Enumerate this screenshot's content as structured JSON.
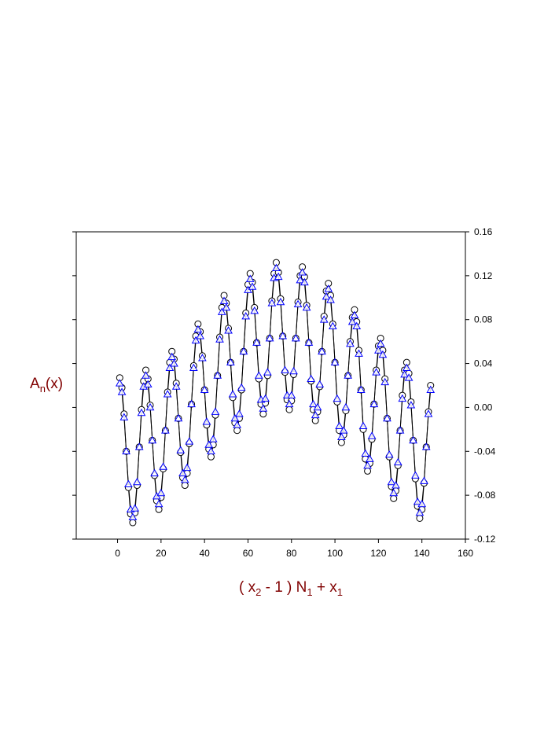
{
  "chart_data": {
    "type": "line",
    "xlabel": [
      "( x",
      "2",
      " - 1 ) N",
      "1",
      " + x",
      "1"
    ],
    "ylabel": [
      "A",
      "n",
      "(x)"
    ],
    "xlim": [
      -19,
      160
    ],
    "xticks": [
      0,
      20,
      40,
      60,
      80,
      100,
      120,
      140,
      160
    ],
    "ylim": [
      -0.12,
      0.16
    ],
    "yticks": [
      -0.12,
      -0.08,
      -0.04,
      {
        "value": 0,
        "label": "0.00"
      },
      0.04,
      0.08,
      0.12,
      0.16
    ],
    "y_axis_side": "right",
    "line_color": "#000000",
    "label_color": "#800000",
    "x": [
      1,
      2,
      3,
      4,
      5,
      6,
      7,
      8,
      9,
      10,
      11,
      12,
      13,
      14,
      15,
      16,
      17,
      18,
      19,
      20,
      21,
      22,
      23,
      24,
      25,
      26,
      27,
      28,
      29,
      30,
      31,
      32,
      33,
      34,
      35,
      36,
      37,
      38,
      39,
      40,
      41,
      42,
      43,
      44,
      45,
      46,
      47,
      48,
      49,
      50,
      51,
      52,
      53,
      54,
      55,
      56,
      57,
      58,
      59,
      60,
      61,
      62,
      63,
      64,
      65,
      66,
      67,
      68,
      69,
      70,
      71,
      72,
      73,
      74,
      75,
      76,
      77,
      78,
      79,
      80,
      81,
      82,
      83,
      84,
      85,
      86,
      87,
      88,
      89,
      90,
      91,
      92,
      93,
      94,
      95,
      96,
      97,
      98,
      99,
      100,
      101,
      102,
      103,
      104,
      105,
      106,
      107,
      108,
      109,
      110,
      111,
      112,
      113,
      114,
      115,
      116,
      117,
      118,
      119,
      120,
      121,
      122,
      123,
      124,
      125,
      126,
      127,
      128,
      129,
      130,
      131,
      132,
      133,
      134,
      135,
      136,
      137,
      138,
      139,
      140,
      141,
      142,
      143,
      144
    ],
    "series": [
      {
        "marker": "circle",
        "color": "#000000",
        "values": [
          0.027,
          0.018,
          -0.006,
          -0.04,
          -0.073,
          -0.097,
          -0.105,
          -0.096,
          -0.071,
          -0.036,
          -0.002,
          0.024,
          0.034,
          0.026,
          0.002,
          -0.03,
          -0.062,
          -0.085,
          -0.093,
          -0.082,
          -0.056,
          -0.021,
          0.014,
          0.041,
          0.051,
          0.044,
          0.022,
          -0.01,
          -0.041,
          -0.064,
          -0.071,
          -0.06,
          -0.033,
          0.003,
          0.038,
          0.065,
          0.076,
          0.069,
          0.047,
          0.016,
          -0.016,
          -0.038,
          -0.045,
          -0.034,
          -0.007,
          0.029,
          0.064,
          0.091,
          0.102,
          0.095,
          0.072,
          0.041,
          0.009,
          -0.014,
          -0.021,
          -0.01,
          0.016,
          0.051,
          0.086,
          0.112,
          0.122,
          0.114,
          0.091,
          0.059,
          0.026,
          0.003,
          -0.006,
          0.004,
          0.029,
          0.063,
          0.097,
          0.122,
          0.132,
          0.123,
          0.099,
          0.065,
          0.032,
          0.007,
          -0.002,
          0.006,
          0.03,
          0.063,
          0.096,
          0.12,
          0.128,
          0.119,
          0.093,
          0.059,
          0.024,
          -0.002,
          -0.012,
          -0.004,
          0.019,
          0.051,
          0.083,
          0.106,
          0.113,
          0.102,
          0.076,
          0.041,
          0.005,
          -0.021,
          -0.032,
          -0.025,
          -0.003,
          0.029,
          0.06,
          0.082,
          0.089,
          0.078,
          0.052,
          0.016,
          -0.02,
          -0.047,
          -0.058,
          -0.051,
          -0.029,
          0.003,
          0.034,
          0.056,
          0.063,
          0.052,
          0.026,
          -0.01,
          -0.045,
          -0.072,
          -0.083,
          -0.076,
          -0.053,
          -0.021,
          0.011,
          0.034,
          0.041,
          0.031,
          0.005,
          -0.03,
          -0.065,
          -0.09,
          -0.101,
          -0.093,
          -0.069,
          -0.036,
          -0.004,
          0.02
        ]
      },
      {
        "marker": "triangle",
        "color": "#0000ff",
        "values": [
          0.022,
          0.014,
          -0.009,
          -0.04,
          -0.07,
          -0.093,
          -0.1,
          -0.092,
          -0.068,
          -0.036,
          -0.005,
          0.019,
          0.029,
          0.021,
          0,
          -0.03,
          -0.06,
          -0.081,
          -0.088,
          -0.078,
          -0.054,
          -0.021,
          0.012,
          0.036,
          0.046,
          0.04,
          0.019,
          -0.01,
          -0.039,
          -0.06,
          -0.066,
          -0.055,
          -0.031,
          0.003,
          0.036,
          0.061,
          0.071,
          0.065,
          0.045,
          0.016,
          -0.013,
          -0.034,
          -0.04,
          -0.029,
          -0.004,
          0.029,
          0.062,
          0.087,
          0.097,
          0.091,
          0.07,
          0.041,
          0.012,
          -0.01,
          -0.016,
          -0.006,
          0.018,
          0.051,
          0.083,
          0.107,
          0.117,
          0.11,
          0.088,
          0.059,
          0.029,
          0.007,
          -0.001,
          0.008,
          0.032,
          0.063,
          0.095,
          0.118,
          0.127,
          0.119,
          0.096,
          0.065,
          0.034,
          0.011,
          0.003,
          0.011,
          0.033,
          0.063,
          0.094,
          0.116,
          0.123,
          0.114,
          0.091,
          0.059,
          0.026,
          0.003,
          -0.007,
          0,
          0.021,
          0.051,
          0.08,
          0.101,
          0.108,
          0.098,
          0.074,
          0.041,
          0.008,
          -0.017,
          -0.027,
          -0.021,
          0,
          0.029,
          0.058,
          0.078,
          0.084,
          0.074,
          0.049,
          0.016,
          -0.017,
          -0.042,
          -0.053,
          -0.047,
          -0.026,
          0.003,
          0.032,
          0.052,
          0.058,
          0.048,
          0.023,
          -0.01,
          -0.043,
          -0.068,
          -0.078,
          -0.071,
          -0.05,
          -0.021,
          0.008,
          0.03,
          0.036,
          0.027,
          0.002,
          -0.03,
          -0.062,
          -0.086,
          -0.096,
          -0.088,
          -0.067,
          -0.036,
          -0.006,
          0.016
        ]
      }
    ]
  }
}
